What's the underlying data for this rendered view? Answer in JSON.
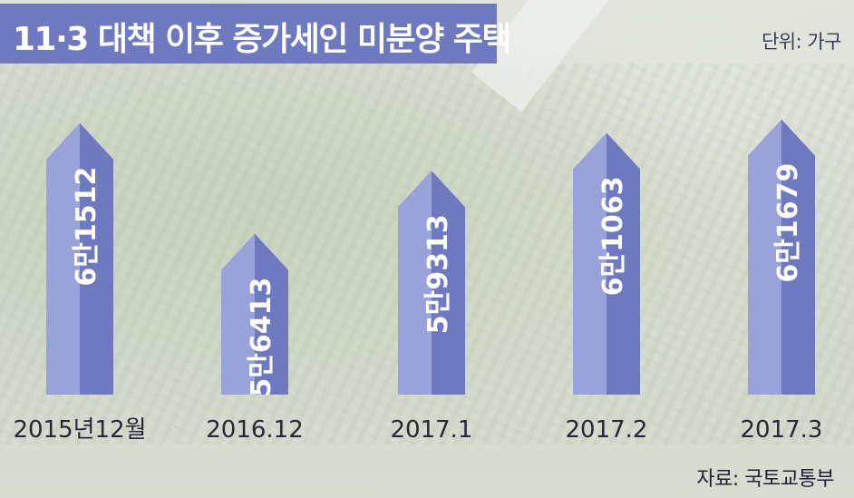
{
  "header": {
    "title": "11·3 대책 이후 증가세인 미분양 주택",
    "unit": "단위: 가구"
  },
  "source": "자료: 국토교통부",
  "colors": {
    "header_bg": "#6f79bf",
    "bar_light": "#9aa3d9",
    "bar_dark": "#6f79bf"
  },
  "chart_data": {
    "type": "bar",
    "title": "11·3 대책 이후 증가세인 미분양 주택",
    "ylabel": "",
    "xlabel": "",
    "categories": [
      "2015년12월",
      "2016.12",
      "2017.1",
      "2017.2",
      "2017.3"
    ],
    "values": [
      61512,
      56413,
      59313,
      61063,
      61679
    ],
    "value_labels": [
      "6만1512",
      "5만6413",
      "5만9313",
      "6만1063",
      "6만1679"
    ],
    "unit": "단위: 가구",
    "ylim": [
      0,
      63000
    ],
    "grid": false,
    "legend": "none"
  }
}
